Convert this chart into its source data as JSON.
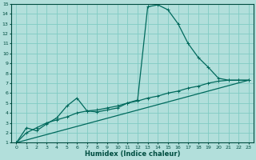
{
  "xlabel": "Humidex (Indice chaleur)",
  "background_color": "#b2dfdb",
  "line_color": "#00695c",
  "grid_color": "#80cbc4",
  "xlim": [
    -0.5,
    23.5
  ],
  "ylim": [
    1,
    15
  ],
  "xticks": [
    0,
    1,
    2,
    3,
    4,
    5,
    6,
    7,
    8,
    9,
    10,
    11,
    12,
    13,
    14,
    15,
    16,
    17,
    18,
    19,
    20,
    21,
    22,
    23
  ],
  "yticks": [
    1,
    2,
    3,
    4,
    5,
    6,
    7,
    8,
    9,
    10,
    11,
    12,
    13,
    14,
    15
  ],
  "line1_x": [
    0,
    1,
    2,
    3,
    4,
    5,
    6,
    7,
    8,
    9,
    10,
    11,
    12,
    13,
    14,
    15,
    16,
    17,
    18,
    19,
    20,
    21,
    22,
    23
  ],
  "line1_y": [
    1.0,
    2.5,
    2.2,
    2.9,
    3.5,
    4.7,
    5.5,
    4.2,
    4.1,
    4.3,
    4.5,
    5.0,
    5.3,
    14.7,
    14.9,
    14.4,
    13.0,
    11.0,
    9.6,
    8.6,
    7.5,
    7.3,
    7.3,
    7.3
  ],
  "line2_x": [
    0,
    1,
    2,
    3,
    4,
    5,
    6,
    7,
    8,
    9,
    10,
    11,
    12,
    13,
    14,
    15,
    16,
    17,
    18,
    19,
    20,
    21,
    22,
    23
  ],
  "line2_y": [
    1.0,
    2.0,
    2.5,
    3.0,
    3.3,
    3.6,
    4.0,
    4.2,
    4.3,
    4.5,
    4.7,
    5.0,
    5.2,
    5.5,
    5.7,
    6.0,
    6.2,
    6.5,
    6.7,
    7.0,
    7.2,
    7.3,
    7.3,
    7.3
  ],
  "line3_x": [
    0,
    23
  ],
  "line3_y": [
    1.0,
    7.3
  ]
}
